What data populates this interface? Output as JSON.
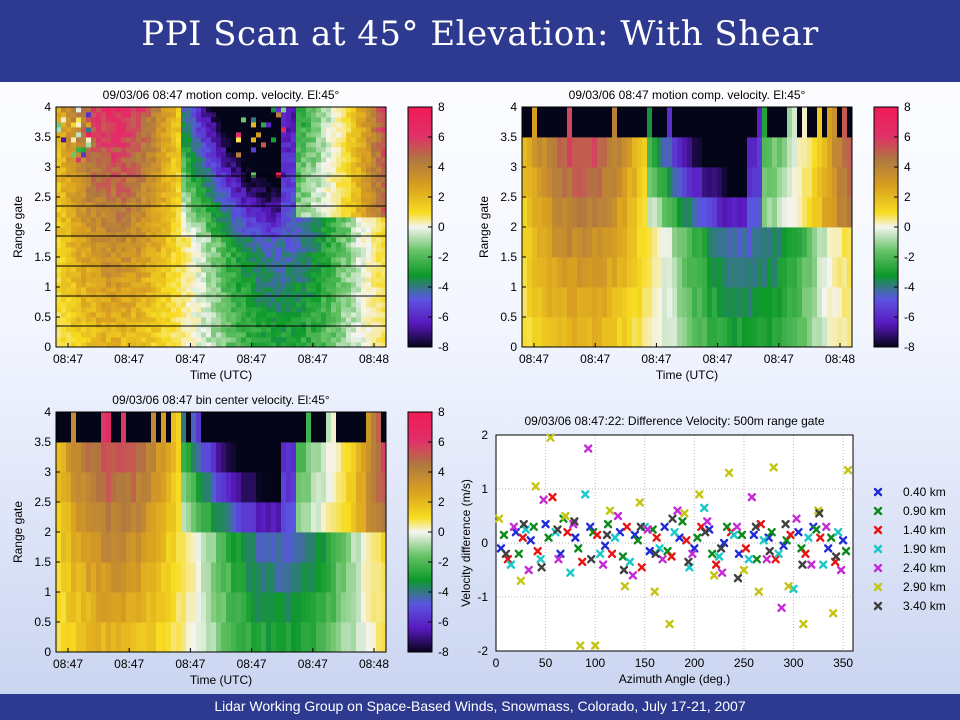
{
  "slide": {
    "title": "PPI Scan at 45° Elevation: With Shear",
    "footer": "Lidar Working Group on Space-Based Winds, Snowmass, Colorado, July 17-21, 2007"
  },
  "chart_data": [
    {
      "type": "heatmap",
      "title": "09/03/06 08:47  motion comp. velocity. El:45°",
      "xlabel": "Time (UTC)",
      "ylabel": "Range gate",
      "x_ticks": [
        "08:47",
        "08:47",
        "08:47",
        "08:47",
        "08:47",
        "08:48"
      ],
      "y_ticks": [
        "0",
        "0.5",
        "1",
        "1.5",
        "2",
        "2.5",
        "3",
        "3.5",
        "4"
      ],
      "ylim": [
        0,
        4
      ],
      "colorbar": {
        "ticks": [
          "8",
          "6",
          "4",
          "2",
          "0",
          "-2",
          "-4",
          "-6",
          "-8"
        ],
        "range": [
          -8,
          8
        ]
      },
      "overlay_lines_y": [
        0.35,
        0.85,
        1.35,
        1.85,
        2.35,
        2.85
      ]
    },
    {
      "type": "heatmap",
      "title": "09/03/06 08:47  motion comp. velocity. El:45°",
      "xlabel": "Time (UTC)",
      "ylabel": "Range gate",
      "x_ticks": [
        "08:47",
        "08:47",
        "08:47",
        "08:47",
        "08:47",
        "08:48"
      ],
      "y_ticks": [
        "0",
        "0.5",
        "1",
        "1.5",
        "2",
        "2.5",
        "3",
        "3.5",
        "4"
      ],
      "ylim": [
        0,
        4
      ],
      "colorbar": {
        "ticks": [
          "8",
          "6",
          "4",
          "2",
          "0",
          "-2",
          "-4",
          "-6",
          "-8"
        ],
        "range": [
          -8,
          8
        ]
      }
    },
    {
      "type": "heatmap",
      "title": "09/03/06 08:47 bin center velocity. El:45°",
      "xlabel": "Time (UTC)",
      "ylabel": "Range gate",
      "x_ticks": [
        "08:47",
        "08:47",
        "08:47",
        "08:47",
        "08:47",
        "08:48"
      ],
      "y_ticks": [
        "0",
        "0.5",
        "1",
        "1.5",
        "2",
        "2.5",
        "3",
        "3.5",
        "4"
      ],
      "ylim": [
        0,
        4
      ],
      "colorbar": {
        "ticks": [
          "8",
          "6",
          "4",
          "2",
          "0",
          "-2",
          "-4",
          "-6",
          "-8"
        ],
        "range": [
          -8,
          8
        ]
      }
    },
    {
      "type": "scatter",
      "title": "09/03/06 08:47:22: Difference Velocity:  500m range gate",
      "xlabel": "Azimuth Angle (deg.)",
      "ylabel": "Velocity difference (m/s)",
      "xlim": [
        0,
        360
      ],
      "ylim": [
        -2,
        2
      ],
      "x_ticks": [
        0,
        50,
        100,
        150,
        200,
        250,
        300,
        350
      ],
      "y_ticks": [
        -2,
        -1,
        0,
        1,
        2
      ],
      "grid": true,
      "legend": "right",
      "series": [
        {
          "name": "0.40 km",
          "color": "#1f2bd8",
          "x": [
            5,
            20,
            35,
            50,
            65,
            80,
            95,
            110,
            125,
            140,
            155,
            170,
            185,
            200,
            215,
            230,
            245,
            260,
            275,
            290,
            305,
            320,
            335,
            350
          ],
          "y": [
            -0.1,
            0.2,
            0.05,
            0.35,
            -0.2,
            0.1,
            0.3,
            -0.05,
            0.2,
            0.15,
            -0.15,
            0.3,
            0.1,
            -0.1,
            0.25,
            0.0,
            -0.2,
            0.15,
            0.1,
            -0.05,
            0.2,
            0.3,
            -0.1,
            0.05
          ]
        },
        {
          "name": "0.90 km",
          "color": "#0b8a1a",
          "x": [
            8,
            23,
            38,
            53,
            68,
            83,
            98,
            113,
            128,
            143,
            158,
            173,
            188,
            203,
            218,
            233,
            248,
            263,
            278,
            293,
            308,
            323,
            338,
            353
          ],
          "y": [
            0.15,
            -0.2,
            0.3,
            0.1,
            0.45,
            -0.1,
            0.2,
            0.35,
            -0.25,
            0.05,
            0.25,
            -0.15,
            0.4,
            0.1,
            -0.2,
            0.3,
            0.15,
            -0.3,
            0.2,
            0.05,
            -0.1,
            0.25,
            0.1,
            -0.15
          ]
        },
        {
          "name": "1.40 km",
          "color": "#e81414",
          "x": [
            12,
            27,
            42,
            57,
            72,
            87,
            102,
            117,
            132,
            147,
            162,
            177,
            192,
            207,
            222,
            237,
            252,
            267,
            282,
            297,
            312,
            327,
            342
          ],
          "y": [
            -0.3,
            0.1,
            -0.15,
            0.85,
            0.2,
            -0.35,
            0.15,
            -0.2,
            0.3,
            -0.45,
            0.1,
            -0.25,
            0.05,
            0.3,
            -0.4,
            0.2,
            -0.1,
            0.35,
            -0.3,
            0.15,
            -0.2,
            0.1,
            -0.35
          ]
        },
        {
          "name": "1.90 km",
          "color": "#19c8c8",
          "x": [
            15,
            30,
            45,
            60,
            75,
            90,
            105,
            120,
            135,
            150,
            165,
            180,
            195,
            210,
            225,
            240,
            255,
            270,
            285,
            300,
            315,
            330,
            345
          ],
          "y": [
            -0.4,
            0.25,
            -0.3,
            0.2,
            -0.55,
            0.9,
            -0.2,
            0.1,
            -0.35,
            0.3,
            -0.1,
            0.2,
            -0.45,
            0.65,
            -0.25,
            0.15,
            -0.3,
            0.05,
            -0.2,
            -0.85,
            0.1,
            -0.4,
            0.2
          ]
        },
        {
          "name": "2.40 km",
          "color": "#c62ad8",
          "x": [
            18,
            33,
            48,
            63,
            78,
            93,
            108,
            123,
            138,
            153,
            168,
            183,
            198,
            213,
            228,
            243,
            258,
            273,
            288,
            303,
            318,
            333,
            348
          ],
          "y": [
            0.3,
            -0.5,
            0.8,
            -0.3,
            0.35,
            1.75,
            -0.4,
            0.5,
            -0.6,
            0.25,
            -0.3,
            0.6,
            -0.2,
            0.4,
            -0.55,
            0.3,
            0.85,
            -0.3,
            -1.2,
            0.45,
            -0.4,
            0.3,
            -0.5
          ]
        },
        {
          "name": "2.90 km",
          "color": "#c4c412",
          "x": [
            3,
            25,
            40,
            55,
            70,
            85,
            100,
            115,
            130,
            145,
            160,
            175,
            190,
            205,
            220,
            235,
            250,
            265,
            280,
            295,
            310,
            325,
            340,
            355
          ],
          "y": [
            0.45,
            -0.7,
            1.05,
            1.95,
            0.5,
            -1.9,
            -1.9,
            0.6,
            -0.8,
            0.75,
            -0.9,
            -1.5,
            0.55,
            0.9,
            -0.6,
            1.3,
            -0.5,
            -0.9,
            1.4,
            -0.8,
            -1.5,
            0.6,
            -1.3,
            1.35
          ]
        },
        {
          "name": "3.40 km",
          "color": "#404040",
          "x": [
            10,
            28,
            46,
            62,
            79,
            96,
            112,
            129,
            146,
            161,
            178,
            194,
            211,
            227,
            244,
            262,
            276,
            292,
            309,
            326,
            343
          ],
          "y": [
            -0.2,
            0.35,
            -0.45,
            0.25,
            0.4,
            -0.3,
            0.15,
            -0.5,
            0.3,
            -0.2,
            0.45,
            -0.35,
            0.2,
            -0.1,
            -0.65,
            0.3,
            -0.15,
            0.35,
            -0.4,
            0.55,
            -0.25
          ]
        }
      ]
    }
  ]
}
